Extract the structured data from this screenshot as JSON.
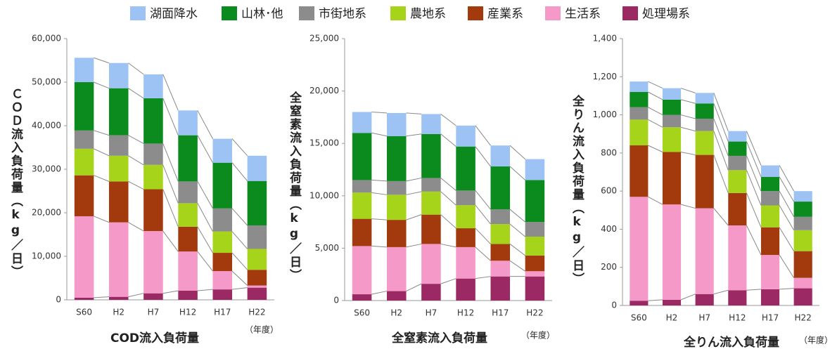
{
  "legend": [
    {
      "name": "湖面降水",
      "color": "#9dc3f5"
    },
    {
      "name": "山林･他",
      "color": "#0b8a1e"
    },
    {
      "name": "市街地系",
      "color": "#8c8c8c"
    },
    {
      "name": "農地系",
      "color": "#a6d41a"
    },
    {
      "name": "産業系",
      "color": "#a23a0e"
    },
    {
      "name": "生活系",
      "color": "#f59ac8"
    },
    {
      "name": "処理場系",
      "color": "#9b2a64"
    }
  ],
  "chart_data": [
    {
      "type": "stacked_bar",
      "title": "COD流入負荷量",
      "y_label": "ＣＯＤ流入負荷量（kg／日）",
      "x_unit": "（年度）",
      "categories": [
        "S60",
        "H2",
        "H7",
        "H12",
        "H17",
        "H22"
      ],
      "ylim": [
        0,
        60000
      ],
      "yticks": [
        0,
        {
          "value": 10000,
          "label": "10,000"
        },
        {
          "value": 20000,
          "label": "20,000"
        },
        {
          "value": 30000,
          "label": "30,000"
        },
        {
          "value": 40000,
          "label": "40,000"
        },
        {
          "value": 50000,
          "label": "50,000"
        },
        {
          "value": 60000,
          "label": "60,000"
        }
      ],
      "series": [
        {
          "values": [
            5600,
            5800,
            5500,
            5700,
            5500,
            5800
          ]
        },
        {
          "values": [
            11100,
            10800,
            10400,
            10600,
            10500,
            10200
          ]
        },
        {
          "values": [
            4200,
            4700,
            4900,
            5000,
            5300,
            5400
          ]
        },
        {
          "values": [
            6100,
            5900,
            5600,
            5400,
            4900,
            4800
          ]
        },
        {
          "values": [
            9400,
            9400,
            9600,
            5700,
            4200,
            3600
          ]
        },
        {
          "values": [
            18700,
            17100,
            14300,
            9000,
            4200,
            500
          ]
        },
        {
          "values": [
            500,
            700,
            1500,
            2100,
            2400,
            2800
          ]
        }
      ]
    },
    {
      "type": "stacked_bar",
      "title": "全窒素流入負荷量",
      "y_label": "全窒素流入負荷量（kg／日）",
      "x_unit": "（年度）",
      "categories": [
        "S60",
        "H2",
        "H7",
        "H12",
        "H17",
        "H22"
      ],
      "ylim": [
        0,
        25000
      ],
      "yticks": [
        0,
        {
          "value": 5000,
          "label": "5,000"
        },
        {
          "value": 10000,
          "label": "10,000"
        },
        {
          "value": 15000,
          "label": "15,000"
        },
        {
          "value": 20000,
          "label": "20,000"
        },
        {
          "value": 25000,
          "label": "25,000"
        }
      ],
      "series": [
        {
          "values": [
            2000,
            2200,
            1900,
            2000,
            2000,
            2000
          ]
        },
        {
          "values": [
            4500,
            4300,
            4200,
            4200,
            4100,
            4000
          ]
        },
        {
          "values": [
            1200,
            1300,
            1300,
            1400,
            1400,
            1400
          ]
        },
        {
          "values": [
            2500,
            2400,
            2200,
            2200,
            1900,
            1800
          ]
        },
        {
          "values": [
            2600,
            2600,
            2800,
            1800,
            1600,
            1500
          ]
        },
        {
          "values": [
            4600,
            4200,
            3800,
            3000,
            1500,
            500
          ]
        },
        {
          "values": [
            600,
            900,
            1600,
            2100,
            2300,
            2300
          ]
        }
      ]
    },
    {
      "type": "stacked_bar",
      "title": "全りん流入負荷量",
      "y_label": "全りん流入負荷量（kg／日）",
      "x_unit": "（年度）",
      "categories": [
        "S60",
        "H2",
        "H7",
        "H12",
        "H17",
        "H22"
      ],
      "ylim": [
        0,
        1400
      ],
      "yticks": [
        0,
        200,
        400,
        600,
        800,
        {
          "value": 1000,
          "label": "1,000"
        },
        {
          "value": 1200,
          "label": "1,200"
        },
        {
          "value": 1400,
          "label": "1,400"
        }
      ],
      "series": [
        {
          "values": [
            55,
            60,
            55,
            55,
            60,
            55
          ]
        },
        {
          "values": [
            80,
            80,
            80,
            75,
            75,
            80
          ]
        },
        {
          "values": [
            65,
            65,
            65,
            75,
            75,
            70
          ]
        },
        {
          "values": [
            135,
            130,
            125,
            120,
            115,
            110
          ]
        },
        {
          "values": [
            270,
            275,
            280,
            170,
            145,
            140
          ]
        },
        {
          "values": [
            545,
            500,
            450,
            340,
            180,
            55
          ]
        },
        {
          "values": [
            25,
            30,
            60,
            80,
            85,
            90
          ]
        }
      ]
    }
  ]
}
